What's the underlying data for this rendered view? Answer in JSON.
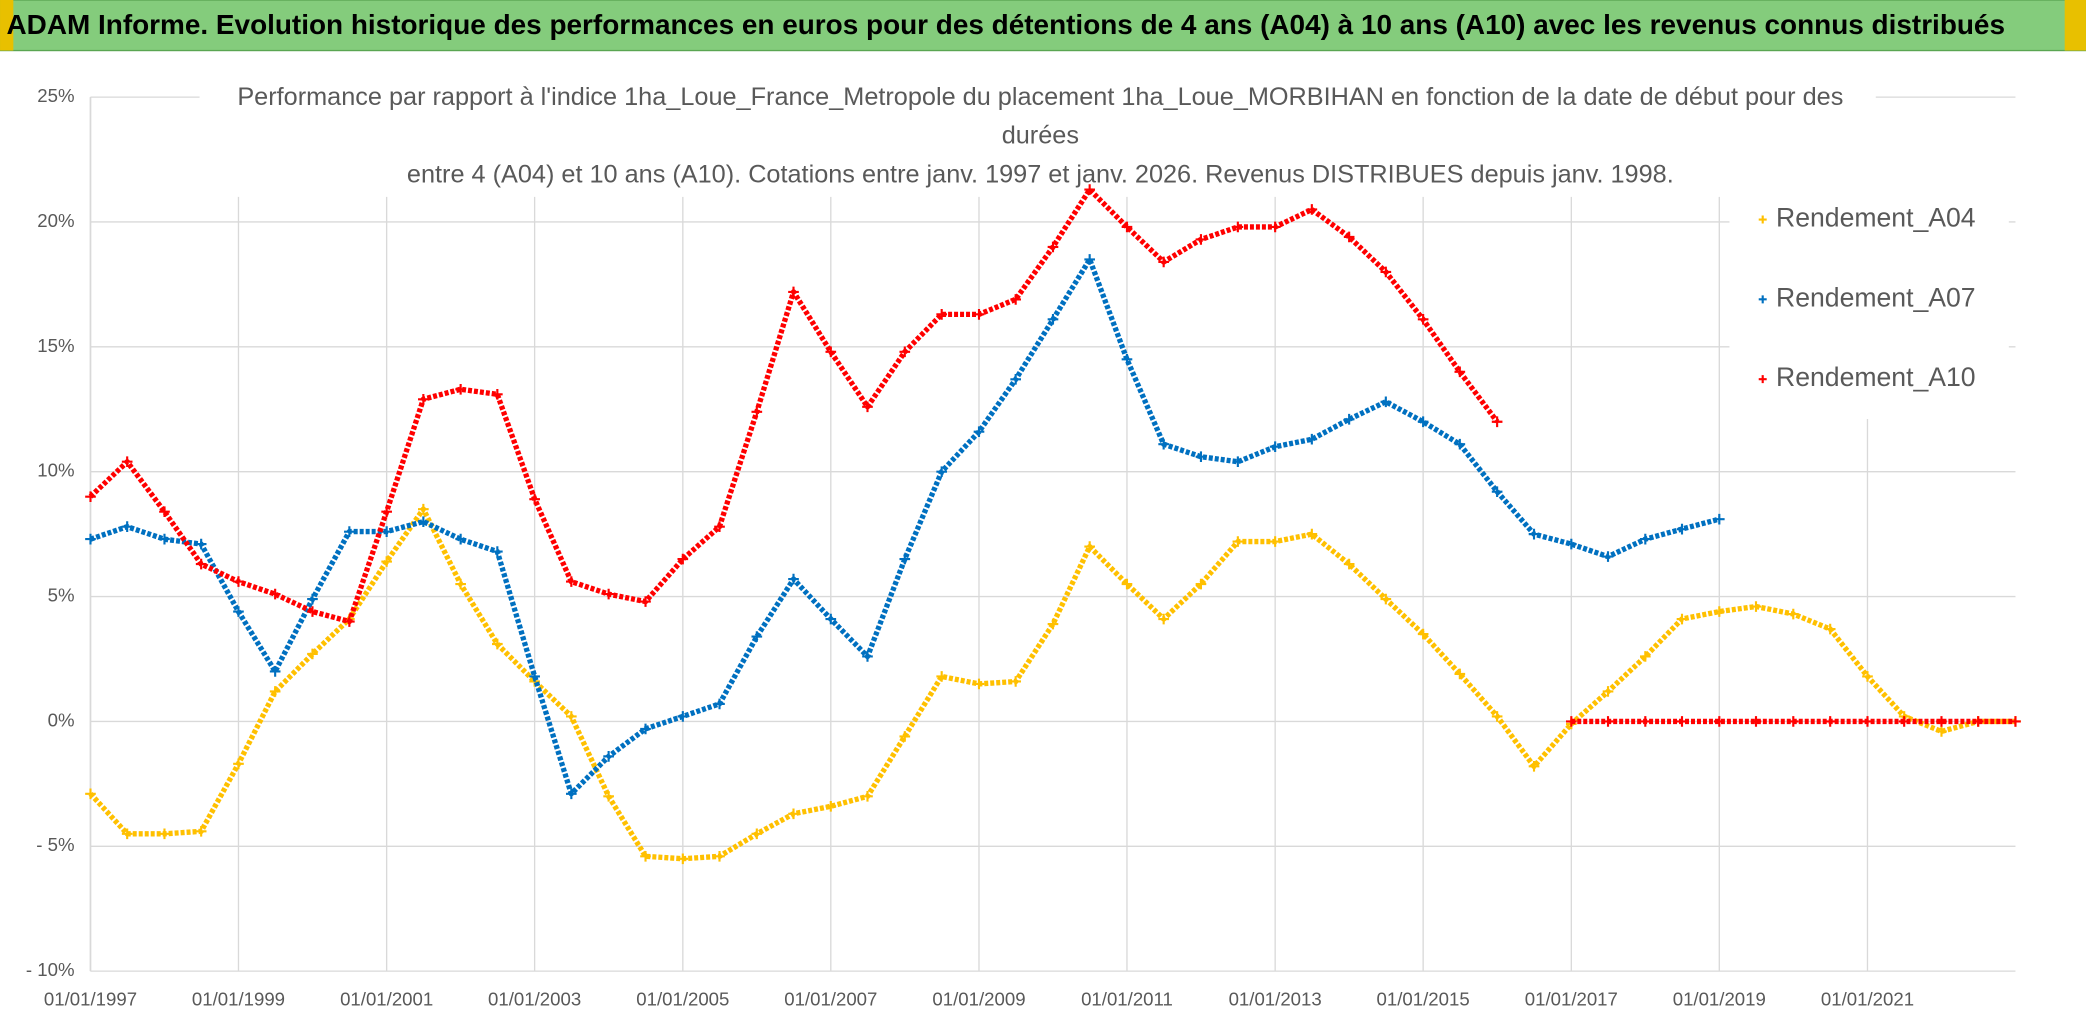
{
  "header": {
    "title": "ADAM Informe. Evolution historique des performances en euros pour des détentions de 4 ans (A04) à 10 ans (A10) avec les revenus connus distribués"
  },
  "chart_data": {
    "type": "line",
    "title_lines": [
      "Performance par rapport à l'indice 1ha_Loue_France_Metropole  du placement 1ha_Loue_MORBIHAN en fonction de la date de début pour des",
      "durées",
      "entre 4 (A04) et 10 ans (A10). Cotations entre janv. 1997 et janv. 2026. Revenus DISTRIBUES depuis janv. 1998."
    ],
    "x": [
      "1997-01-01",
      "1997-07-01",
      "1998-01-01",
      "1998-07-01",
      "1999-01-01",
      "1999-07-01",
      "2000-01-01",
      "2000-07-01",
      "2001-01-01",
      "2001-07-01",
      "2002-01-01",
      "2002-07-01",
      "2003-01-01",
      "2003-07-01",
      "2004-01-01",
      "2004-07-01",
      "2005-01-01",
      "2005-07-01",
      "2006-01-01",
      "2006-07-01",
      "2007-01-01",
      "2007-07-01",
      "2008-01-01",
      "2008-07-01",
      "2009-01-01",
      "2009-07-01",
      "2010-01-01",
      "2010-07-01",
      "2011-01-01",
      "2011-07-01",
      "2012-01-01",
      "2012-07-01",
      "2013-01-01",
      "2013-07-01",
      "2014-01-01",
      "2014-07-01",
      "2015-01-01",
      "2015-07-01",
      "2016-01-01",
      "2016-07-01",
      "2017-01-01",
      "2017-07-01",
      "2018-01-01",
      "2018-07-01",
      "2019-01-01",
      "2019-07-01",
      "2020-01-01",
      "2020-07-01",
      "2021-01-01",
      "2021-07-01",
      "2022-01-01",
      "2022-07-01",
      "2023-01-01"
    ],
    "series": [
      {
        "name": "Rendement_A04",
        "color": "#ffc000",
        "values": [
          -2.9,
          -4.5,
          -4.5,
          -4.4,
          -1.7,
          1.2,
          2.7,
          4.1,
          6.4,
          8.5,
          5.5,
          3.1,
          1.6,
          0.2,
          -3.0,
          -5.4,
          -5.5,
          -5.4,
          -4.5,
          -3.7,
          -3.4,
          -3.0,
          -0.6,
          1.8,
          1.5,
          1.6,
          3.9,
          7.0,
          5.5,
          4.1,
          5.5,
          7.2,
          7.2,
          7.5,
          6.3,
          4.9,
          3.5,
          1.9,
          0.2,
          -1.8,
          -0.1,
          1.2,
          2.6,
          4.1,
          4.4,
          4.6,
          4.3,
          3.7,
          1.8,
          0.2,
          -0.4,
          0,
          0
        ]
      },
      {
        "name": "Rendement_A07",
        "color": "#0070c0",
        "values": [
          7.3,
          7.8,
          7.3,
          7.1,
          4.4,
          2.0,
          4.9,
          7.6,
          7.6,
          8.0,
          7.3,
          6.8,
          1.8,
          -2.9,
          -1.4,
          -0.3,
          0.2,
          0.7,
          3.4,
          5.7,
          4.1,
          2.6,
          6.5,
          10.0,
          11.6,
          13.7,
          16.1,
          18.5,
          14.5,
          11.1,
          10.6,
          10.4,
          11.0,
          11.3,
          12.1,
          12.8,
          12.0,
          11.1,
          9.2,
          7.5,
          7.1,
          6.6,
          7.3,
          7.7,
          8.1,
          null,
          null,
          null,
          null,
          null,
          null,
          null,
          null
        ]
      },
      {
        "name": "Rendement_A10",
        "color": "#ff0000",
        "values": [
          9.0,
          10.4,
          8.4,
          6.3,
          5.6,
          5.1,
          4.4,
          4.0,
          8.4,
          12.9,
          13.3,
          13.1,
          8.9,
          5.6,
          5.1,
          4.8,
          6.5,
          7.8,
          12.4,
          17.2,
          14.8,
          12.6,
          14.8,
          16.3,
          16.3,
          16.9,
          19.0,
          21.3,
          19.8,
          18.4,
          19.3,
          19.8,
          19.8,
          20.5,
          19.4,
          18.0,
          16.1,
          14.0,
          12.0,
          null,
          0,
          0,
          0,
          0,
          0,
          0,
          0,
          0,
          0,
          0,
          0,
          0,
          0
        ]
      }
    ],
    "xlim": [
      "1997-01-01",
      "2023-01-01"
    ],
    "xticks": [
      {
        "value": "1997-01-01",
        "label": "01/01/1997"
      },
      {
        "value": "1999-01-01",
        "label": "01/01/1999"
      },
      {
        "value": "2001-01-01",
        "label": "01/01/2001"
      },
      {
        "value": "2003-01-01",
        "label": "01/01/2003"
      },
      {
        "value": "2005-01-01",
        "label": "01/01/2005"
      },
      {
        "value": "2007-01-01",
        "label": "01/01/2007"
      },
      {
        "value": "2009-01-01",
        "label": "01/01/2009"
      },
      {
        "value": "2011-01-01",
        "label": "01/01/2011"
      },
      {
        "value": "2013-01-01",
        "label": "01/01/2013"
      },
      {
        "value": "2015-01-01",
        "label": "01/01/2015"
      },
      {
        "value": "2017-01-01",
        "label": "01/01/2017"
      },
      {
        "value": "2019-01-01",
        "label": "01/01/2019"
      },
      {
        "value": "2021-01-01",
        "label": "01/01/2021"
      }
    ],
    "ylim": [
      -10,
      25
    ],
    "yticks": [
      {
        "value": -10,
        "label": "- 10%"
      },
      {
        "value": -5,
        "label": "- 5%"
      },
      {
        "value": 0,
        "label": "0%"
      },
      {
        "value": 5,
        "label": "5%"
      },
      {
        "value": 10,
        "label": "10%"
      },
      {
        "value": 15,
        "label": "15%"
      },
      {
        "value": 20,
        "label": "20%"
      },
      {
        "value": 25,
        "label": "25%"
      }
    ],
    "grid": true,
    "legend": "right"
  }
}
